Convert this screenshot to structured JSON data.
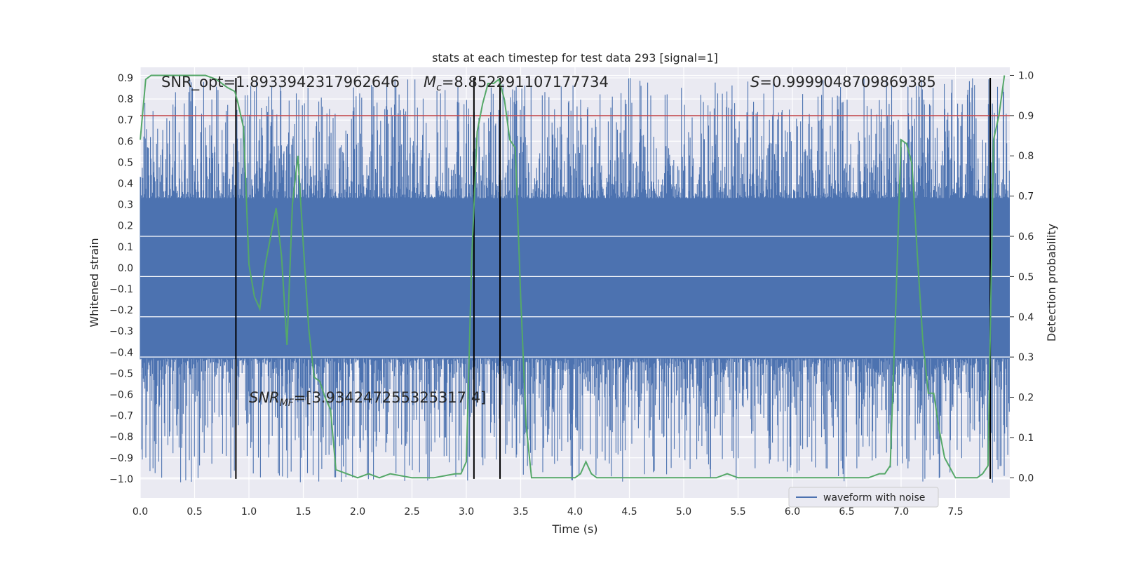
{
  "chart_data": {
    "type": "line",
    "title": "stats at each timestep for test data 293 [signal=1]",
    "xlabel": "Time (s)",
    "ylabel_left": "Whitened strain",
    "ylabel_right": "Detection probability",
    "xlim": [
      0,
      8
    ],
    "ylim_left": [
      -1.09,
      0.95
    ],
    "ylim_right": [
      -0.05,
      1.02
    ],
    "x_ticks": [
      "0.0",
      "0.5",
      "1.0",
      "1.5",
      "2.0",
      "2.5",
      "3.0",
      "3.5",
      "4.0",
      "4.5",
      "5.0",
      "5.5",
      "6.0",
      "6.5",
      "7.0",
      "7.5"
    ],
    "x_tick_values": [
      0,
      0.5,
      1,
      1.5,
      2,
      2.5,
      3,
      3.5,
      4,
      4.5,
      5,
      5.5,
      6,
      6.5,
      7,
      7.5
    ],
    "y_left_ticks": [
      "0.9",
      "0.8",
      "0.7",
      "0.6",
      "0.5",
      "0.4",
      "0.3",
      "0.2",
      "0.1",
      "0.0",
      "−0.1",
      "−0.2",
      "−0.3",
      "−0.4",
      "−0.5",
      "−0.6",
      "−0.7",
      "−0.8",
      "−0.9",
      "−1.0"
    ],
    "y_left_tick_values": [
      0.9,
      0.8,
      0.7,
      0.6,
      0.5,
      0.4,
      0.3,
      0.2,
      0.1,
      0.0,
      -0.1,
      -0.2,
      -0.3,
      -0.4,
      -0.5,
      -0.6,
      -0.7,
      -0.8,
      -0.9,
      -1.0
    ],
    "y_right_ticks": [
      "1.0",
      "0.9",
      "0.8",
      "0.7",
      "0.6",
      "0.5",
      "0.4",
      "0.3",
      "0.2",
      "0.1",
      "0.0"
    ],
    "y_right_tick_values": [
      1.0,
      0.9,
      0.8,
      0.7,
      0.6,
      0.5,
      0.4,
      0.3,
      0.2,
      0.1,
      0.0
    ],
    "threshold_line": {
      "axis": "right",
      "value": 0.9,
      "color": "#c44e52"
    },
    "vertical_lines": {
      "x": [
        0.88,
        3.07,
        3.31,
        7.82
      ],
      "ymin": -1.0,
      "ymax": 0.9,
      "color": "#000000"
    },
    "series": [
      {
        "name": "waveform with noise",
        "axis": "left",
        "color": "#4c72b0",
        "kind": "noise-band",
        "dense_band": [
          -0.43,
          0.33
        ],
        "spike_range": [
          -1.02,
          0.9
        ],
        "duration_s": 8
      },
      {
        "name": "detection probability",
        "axis": "right",
        "color": "#55a868",
        "x": [
          0.0,
          0.05,
          0.1,
          0.2,
          0.3,
          0.4,
          0.5,
          0.6,
          0.7,
          0.8,
          0.87,
          0.9,
          0.95,
          1.0,
          1.05,
          1.1,
          1.15,
          1.2,
          1.25,
          1.3,
          1.35,
          1.4,
          1.45,
          1.5,
          1.55,
          1.6,
          1.65,
          1.7,
          1.75,
          1.8,
          2.0,
          2.1,
          2.2,
          2.3,
          2.5,
          2.7,
          2.9,
          2.95,
          3.0,
          3.05,
          3.1,
          3.15,
          3.2,
          3.25,
          3.3,
          3.35,
          3.4,
          3.45,
          3.5,
          3.55,
          3.6,
          3.8,
          4.0,
          4.05,
          4.1,
          4.15,
          4.2,
          4.3,
          4.5,
          5.0,
          5.2,
          5.3,
          5.4,
          5.5,
          5.8,
          6.0,
          6.3,
          6.5,
          6.6,
          6.7,
          6.8,
          6.85,
          6.9,
          6.95,
          7.0,
          7.05,
          7.1,
          7.15,
          7.2,
          7.25,
          7.3,
          7.35,
          7.4,
          7.5,
          7.6,
          7.65,
          7.7,
          7.75,
          7.8,
          7.85,
          7.9,
          7.95
        ],
        "y": [
          0.84,
          0.99,
          1.0,
          1.0,
          1.0,
          1.0,
          1.0,
          1.0,
          0.99,
          0.97,
          0.96,
          0.93,
          0.87,
          0.53,
          0.45,
          0.42,
          0.53,
          0.6,
          0.67,
          0.55,
          0.33,
          0.68,
          0.8,
          0.58,
          0.37,
          0.25,
          0.24,
          0.2,
          0.17,
          0.02,
          0.0,
          0.01,
          0.0,
          0.01,
          0.0,
          0.0,
          0.01,
          0.01,
          0.04,
          0.55,
          0.86,
          0.93,
          0.98,
          0.98,
          0.99,
          0.94,
          0.84,
          0.82,
          0.45,
          0.13,
          0.0,
          0.0,
          0.0,
          0.01,
          0.04,
          0.01,
          0.0,
          0.0,
          0.0,
          0.0,
          0.0,
          0.0,
          0.01,
          0.0,
          0.0,
          0.0,
          0.0,
          0.0,
          0.0,
          0.0,
          0.01,
          0.01,
          0.03,
          0.42,
          0.84,
          0.83,
          0.78,
          0.55,
          0.34,
          0.21,
          0.21,
          0.12,
          0.05,
          0.0,
          0.0,
          0.0,
          0.0,
          0.01,
          0.03,
          0.84,
          0.9,
          1.0
        ]
      }
    ],
    "annotations": {
      "snr_opt": "SNR_opt=1.8933942317962646",
      "mc_symbol": "M",
      "mc_sub": "c",
      "mc_value": "=8.852291107177734",
      "s_symbol": "S",
      "s_value": "=0.9999048709869385",
      "snr_mf_symbol": "SNR",
      "snr_mf_sub": "MF",
      "snr_mf_value": "=[3.934247255325317 4]"
    },
    "legend": {
      "position": "lower-right",
      "entries": [
        "waveform with noise"
      ]
    }
  }
}
